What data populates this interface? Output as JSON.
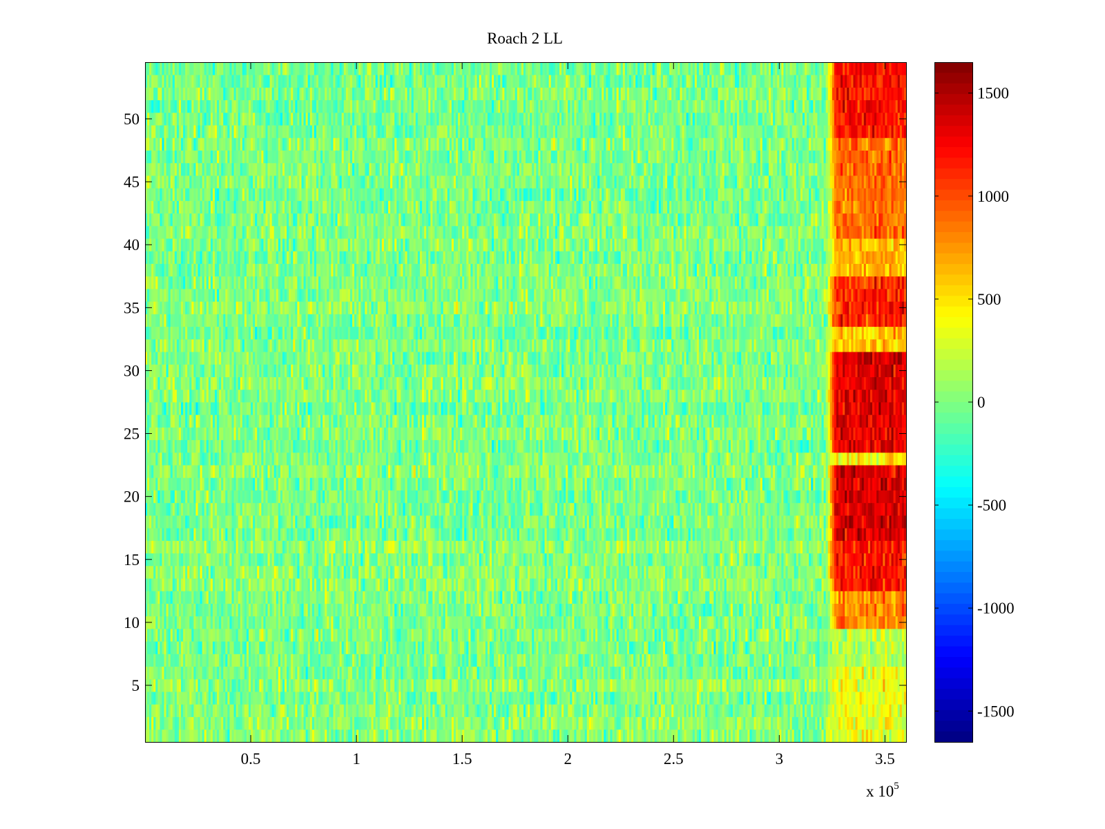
{
  "chart_data": {
    "type": "heatmap",
    "title": "Roach 2 LL",
    "xlabel": "",
    "ylabel": "",
    "x_multiplier_label": "x 10",
    "x_multiplier_exponent": "5",
    "x_range": [
      0,
      3.6
    ],
    "y_range": [
      0.5,
      54.5
    ],
    "rows": 54,
    "x_ticks": [
      {
        "value": 0.5,
        "label": "0.5"
      },
      {
        "value": 1,
        "label": "1"
      },
      {
        "value": 1.5,
        "label": "1.5"
      },
      {
        "value": 2,
        "label": "2"
      },
      {
        "value": 2.5,
        "label": "2.5"
      },
      {
        "value": 3,
        "label": "3"
      },
      {
        "value": 3.5,
        "label": "3.5"
      }
    ],
    "y_ticks": [
      {
        "value": 5,
        "label": "5"
      },
      {
        "value": 10,
        "label": "10"
      },
      {
        "value": 15,
        "label": "15"
      },
      {
        "value": 20,
        "label": "20"
      },
      {
        "value": 25,
        "label": "25"
      },
      {
        "value": 30,
        "label": "30"
      },
      {
        "value": 35,
        "label": "35"
      },
      {
        "value": 40,
        "label": "40"
      },
      {
        "value": 45,
        "label": "45"
      },
      {
        "value": 50,
        "label": "50"
      }
    ],
    "colorbar": {
      "range": [
        -1650,
        1650
      ],
      "colormap": "jet",
      "ticks": [
        {
          "value": 1500,
          "label": "1500"
        },
        {
          "value": 1000,
          "label": "1000"
        },
        {
          "value": 500,
          "label": "500"
        },
        {
          "value": 0,
          "label": "0"
        },
        {
          "value": -500,
          "label": "-500"
        },
        {
          "value": -1000,
          "label": "-1000"
        },
        {
          "value": -1500,
          "label": "-1500"
        }
      ]
    },
    "baseline_level": 0,
    "baseline_spread": 220,
    "high_region_x_start": 3.25,
    "high_region_x_end": 3.6,
    "high_row_levels": [
      {
        "rows": [
          1,
          6
        ],
        "level": 350
      },
      {
        "rows": [
          7,
          8
        ],
        "level": 150
      },
      {
        "rows": [
          9,
          9
        ],
        "level": 250
      },
      {
        "rows": [
          10,
          12
        ],
        "level": 800
      },
      {
        "rows": [
          13,
          16
        ],
        "level": 1200
      },
      {
        "rows": [
          17,
          22
        ],
        "level": 1350
      },
      {
        "rows": [
          23,
          23
        ],
        "level": 450
      },
      {
        "rows": [
          24,
          31
        ],
        "level": 1350
      },
      {
        "rows": [
          32,
          33
        ],
        "level": 600
      },
      {
        "rows": [
          34,
          37
        ],
        "level": 1150
      },
      {
        "rows": [
          38,
          40
        ],
        "level": 650
      },
      {
        "rows": [
          41,
          48
        ],
        "level": 900
      },
      {
        "rows": [
          49,
          54
        ],
        "level": 1200
      }
    ]
  }
}
